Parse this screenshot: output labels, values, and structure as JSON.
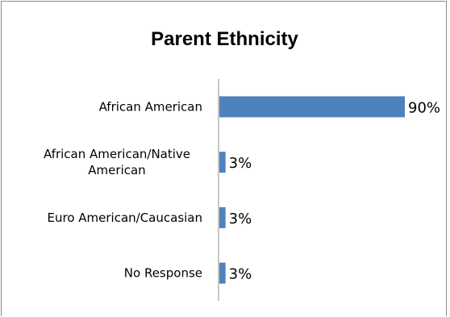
{
  "chart_data": {
    "type": "bar",
    "orientation": "horizontal",
    "title": "Parent Ethnicity",
    "xlabel": "",
    "ylabel": "",
    "xlim": [
      0,
      90
    ],
    "grid": false,
    "legend": "none",
    "bar_color": "#4f81bd",
    "categories": [
      [
        "African American"
      ],
      [
        "African American/Native",
        "American"
      ],
      [
        "Euro American/Caucasian"
      ],
      [
        "No Response"
      ]
    ],
    "values": [
      90,
      3,
      3,
      3
    ],
    "data_labels": [
      "90%",
      "3%",
      "3%",
      "3%"
    ]
  }
}
